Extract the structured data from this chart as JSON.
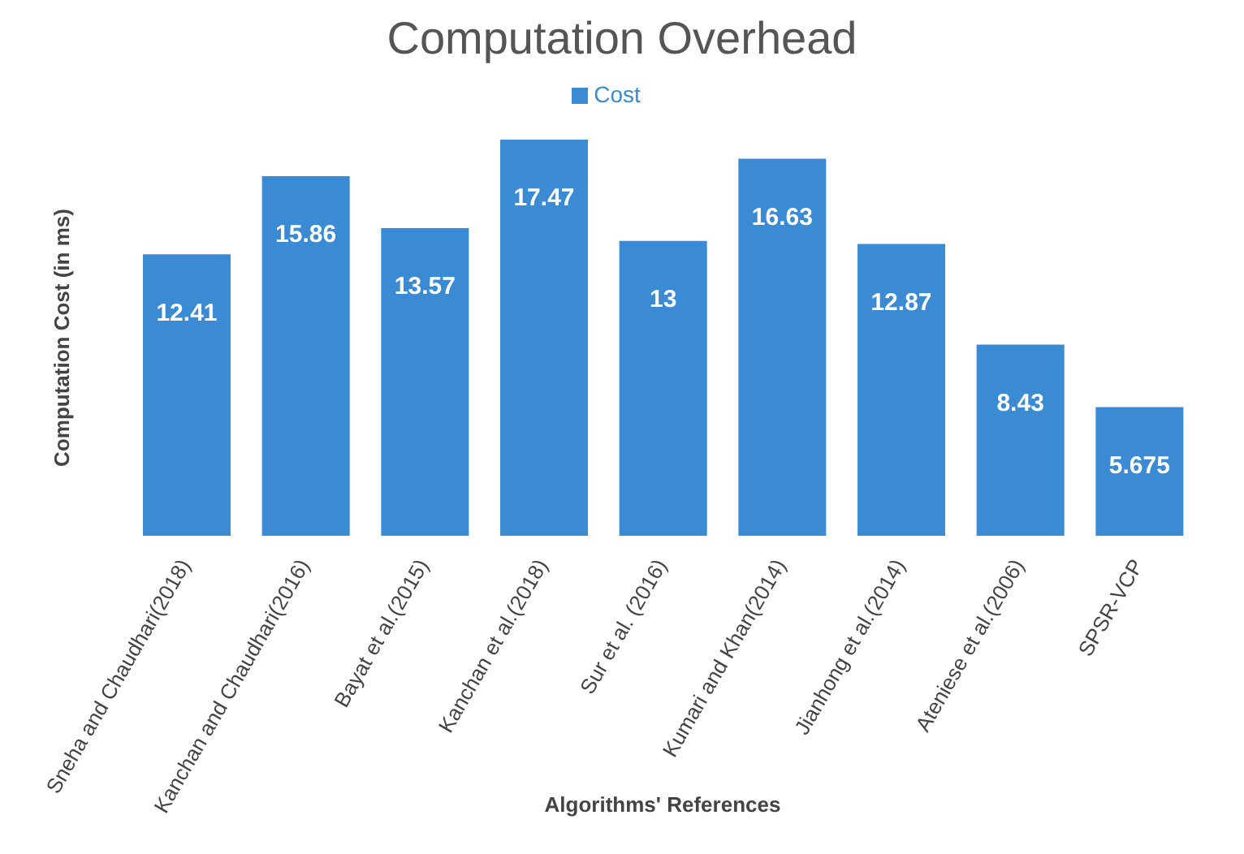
{
  "chart_data": {
    "type": "bar",
    "title": "Computation Overhead",
    "xlabel": "Algorithms' References",
    "ylabel": "Computation Cost (in ms)",
    "categories": [
      "Sneha and Chaudhari(2018)",
      "Kanchan and Chaudhari(2016)",
      "Bayat et al.(2015)",
      "Kanchan et al.(2018)",
      "Sur et al. (2016)",
      "Kumari and Khan(2014)",
      "Jianhong et al.(2014)",
      "Ateniese et al.(2006)",
      "SPSR-VCP"
    ],
    "series": [
      {
        "name": "Cost",
        "color": "#3a8ad4",
        "values": [
          12.41,
          15.86,
          13.57,
          17.47,
          13,
          16.63,
          12.87,
          8.43,
          5.675
        ]
      }
    ],
    "data_labels": true,
    "legend": "top",
    "grid": false
  }
}
